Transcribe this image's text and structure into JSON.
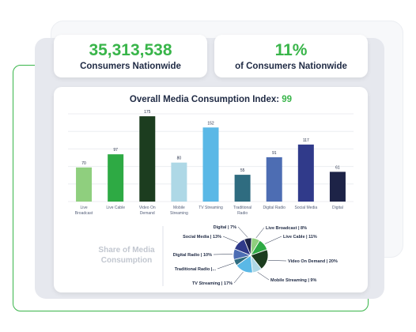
{
  "stats": {
    "consumers_value": "35,313,538",
    "consumers_label": "Consumers Nationwide",
    "percent_value": "11%",
    "percent_label": "of Consumers Nationwide",
    "accent_color": "#39b54a"
  },
  "chart_data": [
    {
      "type": "bar",
      "title": "Overall Media Consumption Index:",
      "title_value": "99",
      "categories": [
        "Live Broadcast",
        "Live Cable",
        "Video On Demand",
        "Mobile Streaming",
        "TV Streaming",
        "Traditional Radio",
        "Digital Radio",
        "Social Media",
        "Digital"
      ],
      "tick_labels": [
        [
          "Live",
          "Broadcast"
        ],
        [
          "Live Cable"
        ],
        [
          "Video On",
          "Demand"
        ],
        [
          "Mobile",
          "Streaming"
        ],
        [
          "TV Streaming"
        ],
        [
          "Traditional",
          "Radio"
        ],
        [
          "Digital Radio"
        ],
        [
          "Social Media"
        ],
        [
          "Digital"
        ]
      ],
      "values": [
        70,
        97,
        175,
        80,
        152,
        55,
        91,
        117,
        61
      ],
      "colors": [
        "#8fcf7e",
        "#2eaa44",
        "#1c3d1f",
        "#aed8e6",
        "#5ab8e6",
        "#2f6c80",
        "#4d6db3",
        "#303a8a",
        "#1d2347"
      ],
      "ylim": [
        0,
        180
      ],
      "grid": true,
      "xlabel": "",
      "ylabel": ""
    },
    {
      "type": "pie",
      "title": "Share of Media Consumption",
      "labels": [
        "Live Broadcast",
        "Live Cable",
        "Video On Demand",
        "Mobile Streaming",
        "TV Streaming",
        "Traditional Radio",
        "Digital Radio",
        "Social Media",
        "Digital"
      ],
      "display_labels": [
        "Live Broadcast | 8%",
        "Live Cable | 11%",
        "Video On Demand | 20%",
        "Mobile Streaming | 9%",
        "TV Streaming | 17%",
        "Traditional Radio |...",
        "Digital Radio | 10%",
        "Social Media | 13%",
        "Digital | 7%"
      ],
      "values": [
        8,
        11,
        20,
        9,
        17,
        6,
        10,
        13,
        7
      ],
      "colors": [
        "#8fcf7e",
        "#2eaa44",
        "#1c3d1f",
        "#aed8e6",
        "#5ab8e6",
        "#2f6c80",
        "#4d6db3",
        "#303a8a",
        "#1d2347"
      ]
    }
  ]
}
